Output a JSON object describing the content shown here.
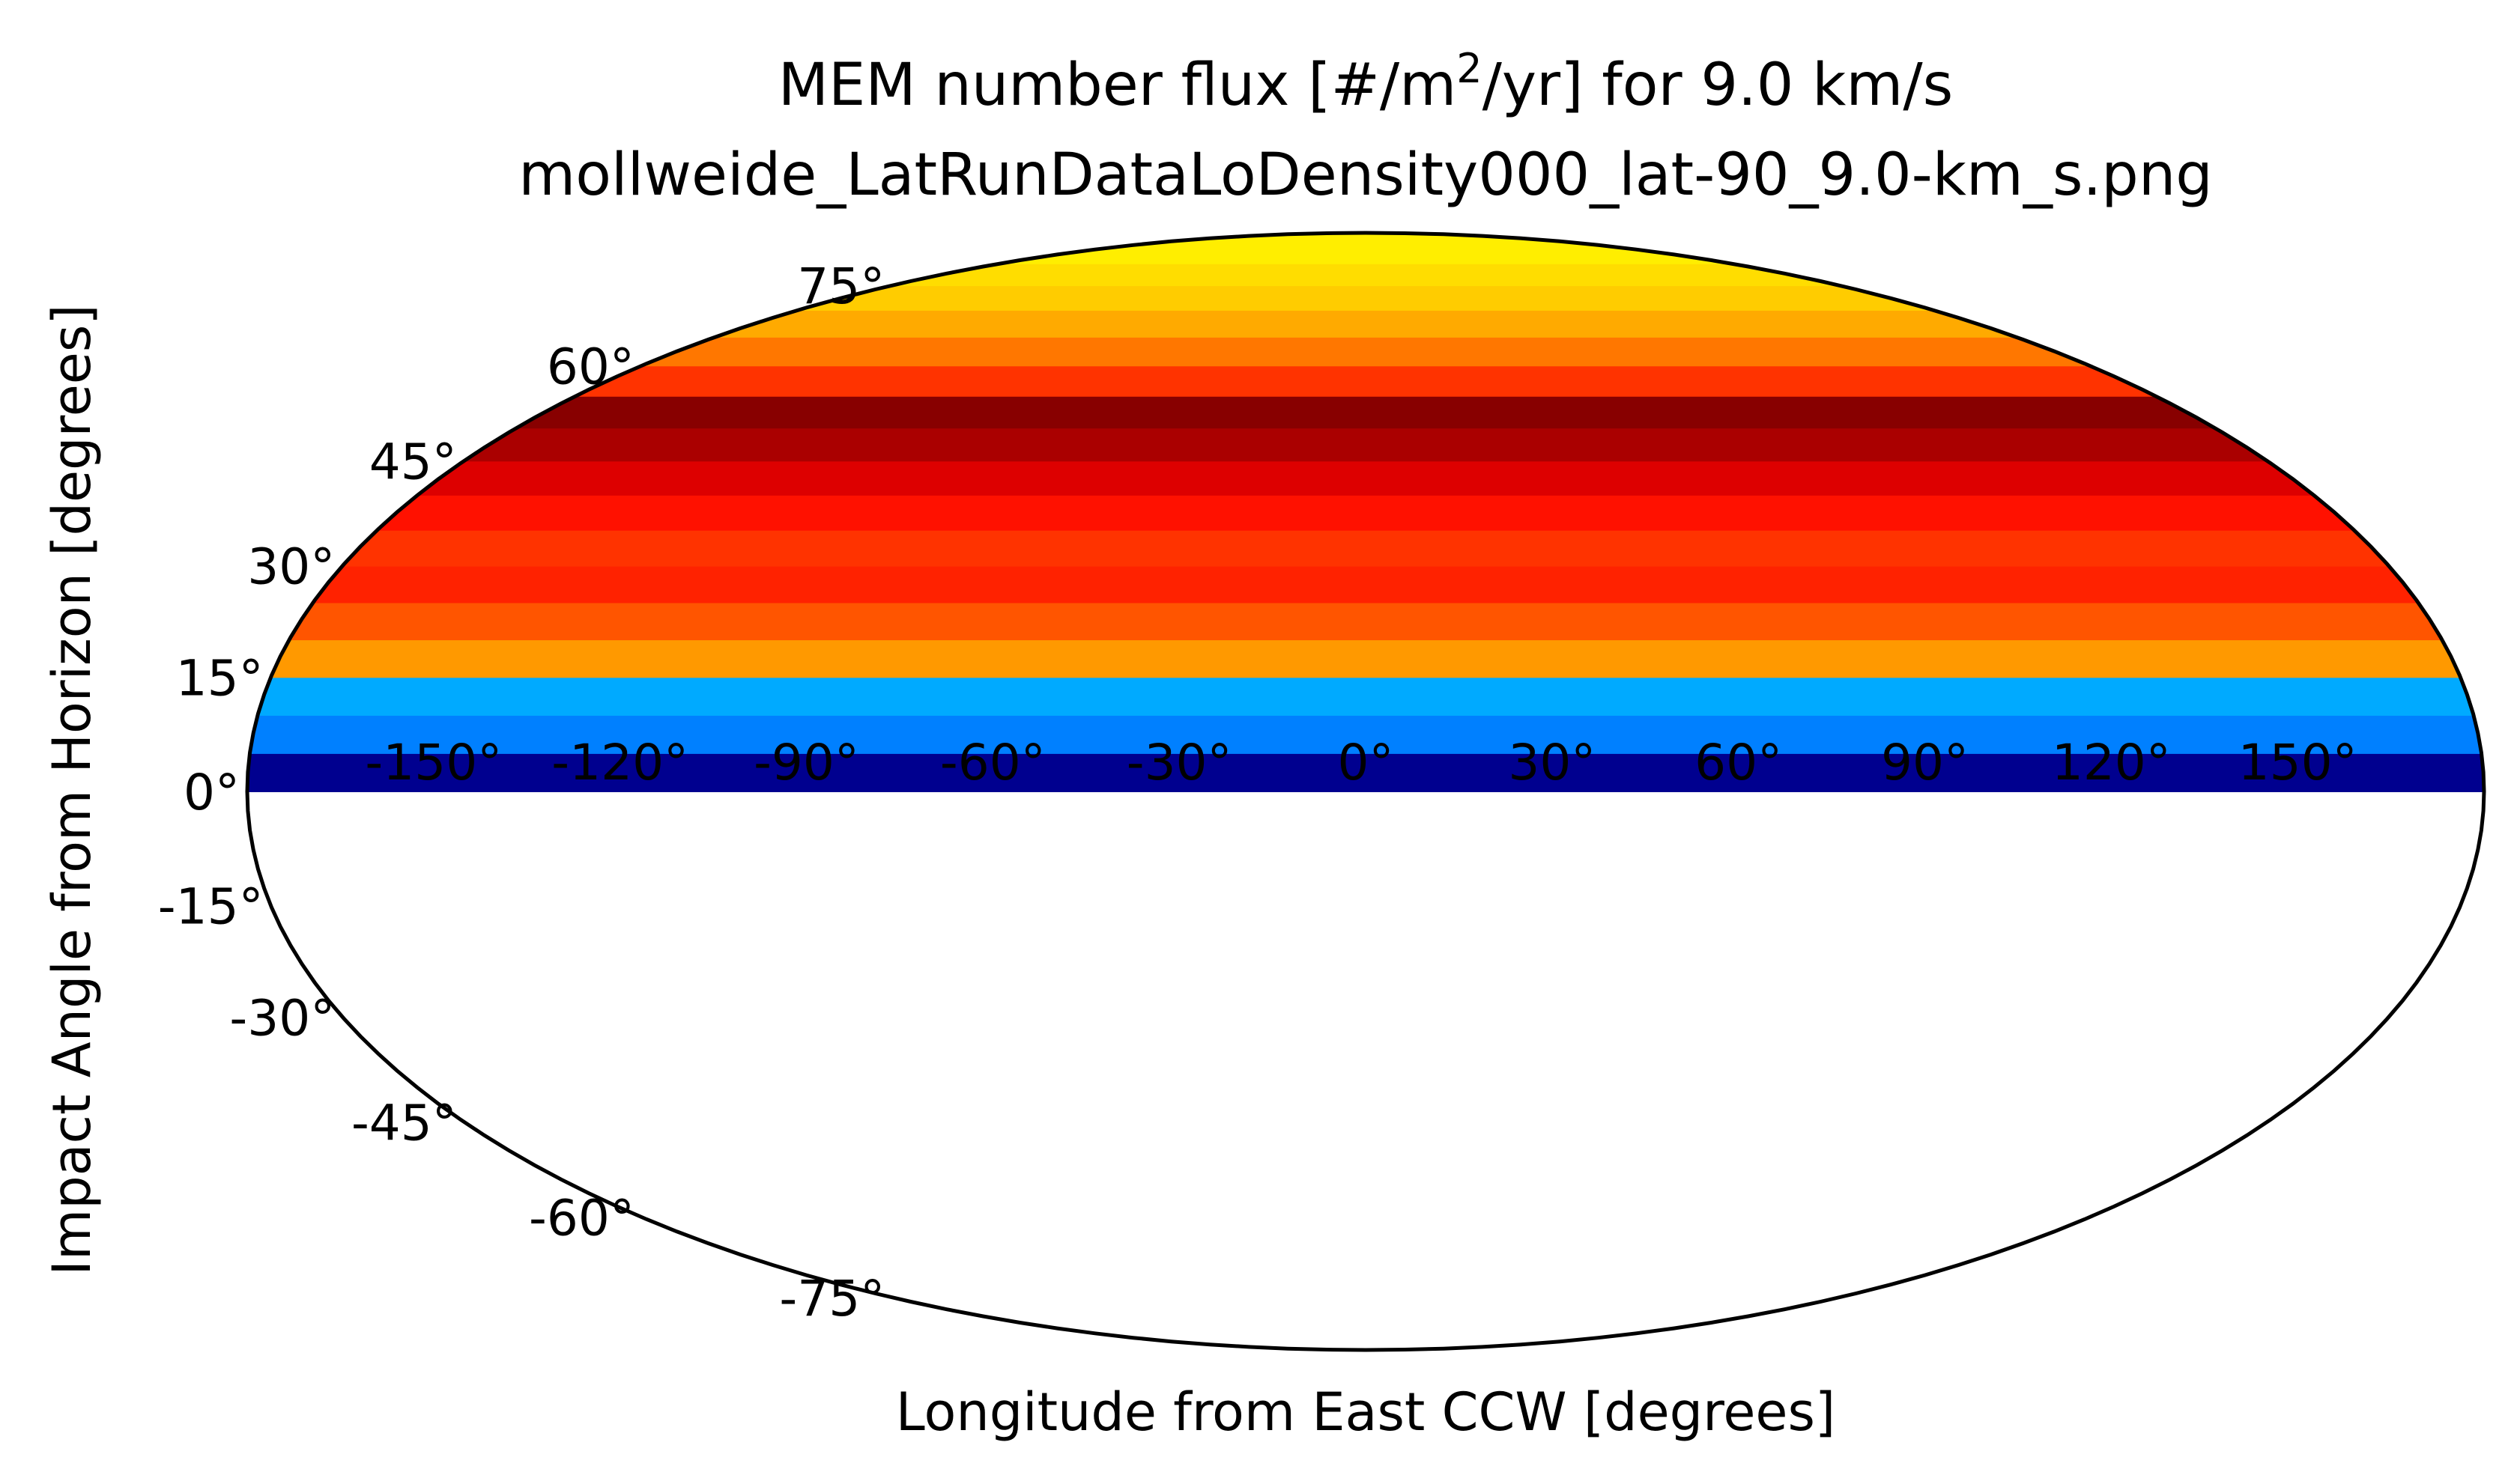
{
  "chart_data": {
    "type": "heatmap",
    "projection": "mollweide",
    "title_line1_prefix": "MEM number flux [#/m",
    "title_line1_sup": "2",
    "title_line1_suffix": "/yr] for 9.0 km/s",
    "title_line2": "mollweide_LatRunDataLoDensity000_lat-90_9.0-km_s.png",
    "xlabel": "Longitude from East CCW [degrees]",
    "ylabel": "Impact Angle from Horizon [degrees]",
    "xlim": [
      -180,
      180
    ],
    "ylim": [
      -90,
      90
    ],
    "grid": false,
    "lon_ticks": [
      -150,
      -120,
      -90,
      -60,
      -30,
      0,
      30,
      60,
      90,
      120,
      150
    ],
    "lon_tick_labels": [
      "-150°",
      "-120°",
      "-90°",
      "-60°",
      "-30°",
      "0°",
      "30°",
      "60°",
      "90°",
      "120°",
      "150°"
    ],
    "lat_ticks": [
      75,
      60,
      45,
      30,
      15,
      0,
      -15,
      -30,
      -45,
      -60,
      -75
    ],
    "lat_tick_labels": [
      "75°",
      "60°",
      "45°",
      "30°",
      "15°",
      "0°",
      "-15°",
      "-30°",
      "-45°",
      "-60°",
      "-75°"
    ],
    "colors": {
      "lat_0_5": "#00008f",
      "lat_5_10": "#0080ff",
      "lat_10_15": "#00aaff",
      "lat_15_20": "#ff9900",
      "lat_20_25": "#ff5500",
      "lat_25_30": "#ff2200",
      "lat_30_35": "#ff3300",
      "lat_35_40": "#ff1100",
      "lat_40_45": "#dd0000",
      "lat_45_50": "#aa0000",
      "lat_50_55": "#880000",
      "lat_55_60": "#ff3300",
      "lat_60_65": "#ff7700",
      "lat_65_70": "#ffaa00",
      "lat_70_75": "#ffcc00",
      "lat_75_80": "#ffdd00",
      "lat_80_90": "#ffee00"
    }
  }
}
